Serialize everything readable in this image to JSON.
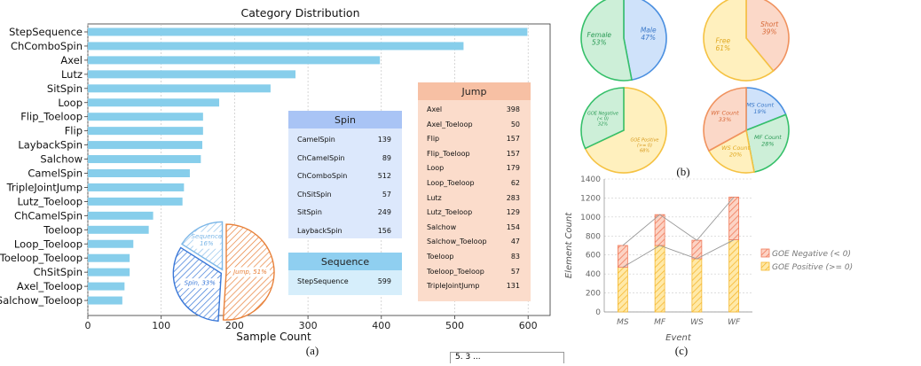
{
  "panel_labels": {
    "a": "(a)",
    "b": "(b)",
    "c": "(c)"
  },
  "chart_data": [
    {
      "type": "bar",
      "orientation": "horizontal",
      "title": "Category Distribution",
      "xlabel": "Sample Count",
      "ylabel": "",
      "xlim": [
        0,
        630
      ],
      "xticks": [
        0,
        100,
        200,
        300,
        400,
        500,
        600
      ],
      "grid": true,
      "color": "#87CEEB",
      "categories": [
        "StepSequence",
        "ChComboSpin",
        "Axel",
        "Lutz",
        "SitSpin",
        "Loop",
        "Flip_Toeloop",
        "Flip",
        "LaybackSpin",
        "Salchow",
        "CamelSpin",
        "TripleJointJump",
        "Lutz_Toeloop",
        "ChCamelSpin",
        "Toeloop",
        "Loop_Toeloop",
        "Toeloop_Toeloop",
        "ChSitSpin",
        "Axel_Toeloop",
        "Salchow_Toeloop"
      ],
      "values": [
        599,
        512,
        398,
        283,
        249,
        179,
        157,
        157,
        156,
        154,
        139,
        131,
        129,
        89,
        83,
        62,
        57,
        57,
        50,
        47
      ]
    },
    {
      "type": "pie",
      "labels": [
        "Jump, 51%",
        "Spin, 33%",
        "Sequence\n16%"
      ],
      "values": [
        51,
        33,
        16
      ],
      "colors": [
        "#E8813A",
        "#3A78D8",
        "#7EB8E8"
      ]
    },
    {
      "type": "table",
      "title": "Spin",
      "rows": [
        [
          "CamelSpin",
          "139"
        ],
        [
          "ChCamelSpin",
          "89"
        ],
        [
          "ChComboSpin",
          "512"
        ],
        [
          "ChSitSpin",
          "57"
        ],
        [
          "SitSpin",
          "249"
        ],
        [
          "LaybackSpin",
          "156"
        ]
      ]
    },
    {
      "type": "table",
      "title": "Sequence",
      "rows": [
        [
          "StepSequence",
          "599"
        ]
      ]
    },
    {
      "type": "table",
      "title": "Jump",
      "rows": [
        [
          "Axel",
          "398"
        ],
        [
          "Axel_Toeloop",
          "50"
        ],
        [
          "Flip",
          "157"
        ],
        [
          "Flip_Toeloop",
          "157"
        ],
        [
          "Loop",
          "179"
        ],
        [
          "Loop_Toeloop",
          "62"
        ],
        [
          "Lutz",
          "283"
        ],
        [
          "Lutz_Toeloop",
          "129"
        ],
        [
          "Salchow",
          "154"
        ],
        [
          "Salchow_Toeloop",
          "47"
        ],
        [
          "Toeloop",
          "83"
        ],
        [
          "Toeloop_Toeloop",
          "57"
        ],
        [
          "TripleJointJump",
          "131"
        ]
      ]
    },
    {
      "type": "pie",
      "slices": [
        {
          "label": "Male",
          "pct": "47%",
          "value": 47,
          "fill": "#CFE2FA",
          "stroke": "#4A8FE0",
          "text": "#3A78C8"
        },
        {
          "label": "Female",
          "pct": "53%",
          "value": 53,
          "fill": "#CDEFD8",
          "stroke": "#36C06A",
          "text": "#2A9A55"
        }
      ]
    },
    {
      "type": "pie",
      "slices": [
        {
          "label": "Short",
          "pct": "39%",
          "value": 39,
          "fill": "#FBD8C8",
          "stroke": "#F0925E",
          "text": "#D86A3A"
        },
        {
          "label": "Free",
          "pct": "61%",
          "value": 61,
          "fill": "#FFF0BE",
          "stroke": "#F5C242",
          "text": "#E0A820"
        }
      ]
    },
    {
      "type": "pie",
      "slices": [
        {
          "label": "GOE Positive\n(>= 0)",
          "pct": "68%",
          "value": 68,
          "fill": "#FFF0BE",
          "stroke": "#F5C242",
          "text": "#D6981A"
        },
        {
          "label": "GOE Negative\n(< 0)",
          "pct": "32%",
          "value": 32,
          "fill": "#CDEFD8",
          "stroke": "#36C06A",
          "text": "#2A9A55"
        }
      ]
    },
    {
      "type": "pie",
      "slices": [
        {
          "label": "MS Count",
          "pct": "19%",
          "value": 19,
          "fill": "#CFE2FA",
          "stroke": "#4A8FE0",
          "text": "#3A78C8"
        },
        {
          "label": "MF Count",
          "pct": "28%",
          "value": 28,
          "fill": "#CDEFD8",
          "stroke": "#36C06A",
          "text": "#2A9A55"
        },
        {
          "label": "WS Count",
          "pct": "20%",
          "value": 20,
          "fill": "#FFF0BE",
          "stroke": "#F5C242",
          "text": "#E0A820"
        },
        {
          "label": "WF Count",
          "pct": "33%",
          "value": 33,
          "fill": "#FBD8C8",
          "stroke": "#F0925E",
          "text": "#D86A3A"
        }
      ]
    },
    {
      "type": "bar",
      "stacked": true,
      "xlabel": "Event",
      "ylabel": "Element Count",
      "ylim": [
        0,
        1400
      ],
      "yticks": [
        0,
        200,
        400,
        600,
        800,
        1000,
        1200,
        1400
      ],
      "categories": [
        "MS",
        "MF",
        "WS",
        "WF"
      ],
      "series": [
        {
          "name": "GOE Positive (>= 0)",
          "values": [
            470,
            700,
            560,
            760
          ],
          "color": "#F5B830"
        },
        {
          "name": "GOE Negative (< 0)",
          "values": [
            230,
            325,
            195,
            450
          ],
          "color": "#F07A5A"
        }
      ],
      "legend": "right"
    }
  ],
  "overlay_box_text": "5. 3 ..."
}
